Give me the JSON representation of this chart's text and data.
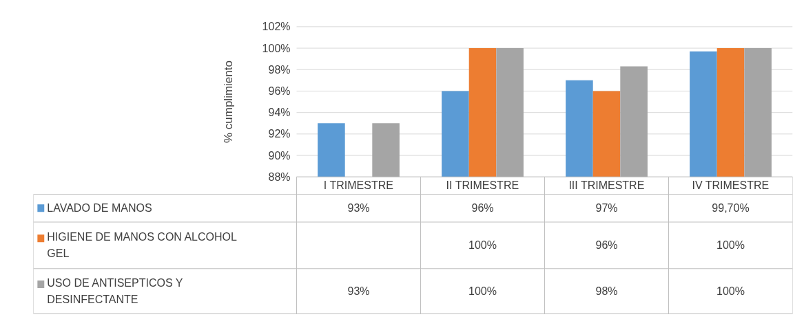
{
  "chart_data": {
    "type": "bar",
    "ylabel": "% cumplimiento",
    "categories": [
      "I TRIMESTRE",
      "II TRIMESTRE",
      "III TRIMESTRE",
      "IV TRIMESTRE"
    ],
    "series": [
      {
        "name": "LAVADO DE MANOS",
        "color": "#5b9bd5",
        "values": [
          93,
          96,
          97,
          99.7
        ],
        "value_labels": [
          "93%",
          "96%",
          "97%",
          "99,70%"
        ]
      },
      {
        "name": "HIGIENE DE MANOS CON ALCOHOL GEL",
        "color": "#ed7d31",
        "values": [
          null,
          100,
          96,
          100
        ],
        "value_labels": [
          null,
          "100%",
          "96%",
          "100%"
        ]
      },
      {
        "name": "USO DE ANTISEPTICOS Y DESINFECTANTE",
        "color": "#a5a5a5",
        "values": [
          93,
          100,
          98.3,
          100
        ],
        "value_labels": [
          "93%",
          "100%",
          "98%",
          "100%"
        ]
      }
    ],
    "ylim": [
      88,
      102
    ],
    "yticks": [
      {
        "value": 88,
        "label": "88%"
      },
      {
        "value": 90,
        "label": "90%"
      },
      {
        "value": 92,
        "label": "92%"
      },
      {
        "value": 94,
        "label": "94%"
      },
      {
        "value": 96,
        "label": "96%"
      },
      {
        "value": 98,
        "label": "98%"
      },
      {
        "value": 100,
        "label": "100%"
      },
      {
        "value": 102,
        "label": "102%"
      }
    ],
    "grid": "y",
    "legend": "bottom"
  }
}
